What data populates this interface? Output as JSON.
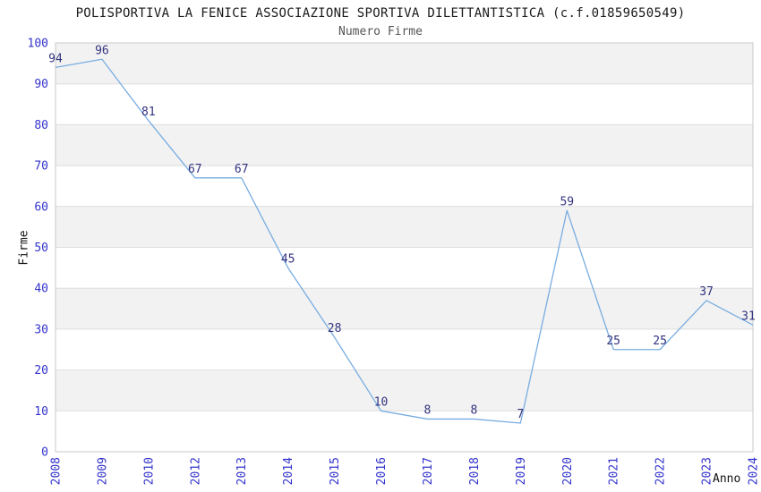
{
  "chart_data": {
    "type": "line",
    "title": "POLISPORTIVA LA FENICE ASSOCIAZIONE SPORTIVA DILETTANTISTICA (c.f.01859650549)",
    "subtitle": "Numero Firme",
    "xlabel": "Anno",
    "ylabel": "Firme",
    "categories": [
      "2008",
      "2009",
      "2010",
      "2012",
      "2013",
      "2014",
      "2015",
      "2016",
      "2017",
      "2018",
      "2019",
      "2020",
      "2021",
      "2022",
      "2023",
      "2024"
    ],
    "values": [
      94,
      96,
      81,
      67,
      67,
      45,
      28,
      10,
      8,
      8,
      7,
      59,
      25,
      25,
      37,
      31
    ],
    "ylim": [
      0,
      100
    ],
    "ytick_step": 10,
    "grid": true,
    "banded_background": true,
    "legend": "none",
    "colors": {
      "line": "#79ade1",
      "point_labels": "#333380",
      "axis_tick_labels": "#3333cc",
      "band_fill": "#f2f2f2",
      "grid_line": "#dedede",
      "plot_border": "#c9c9c9",
      "title": "#1a1a1a",
      "subtitle": "#555555"
    }
  }
}
